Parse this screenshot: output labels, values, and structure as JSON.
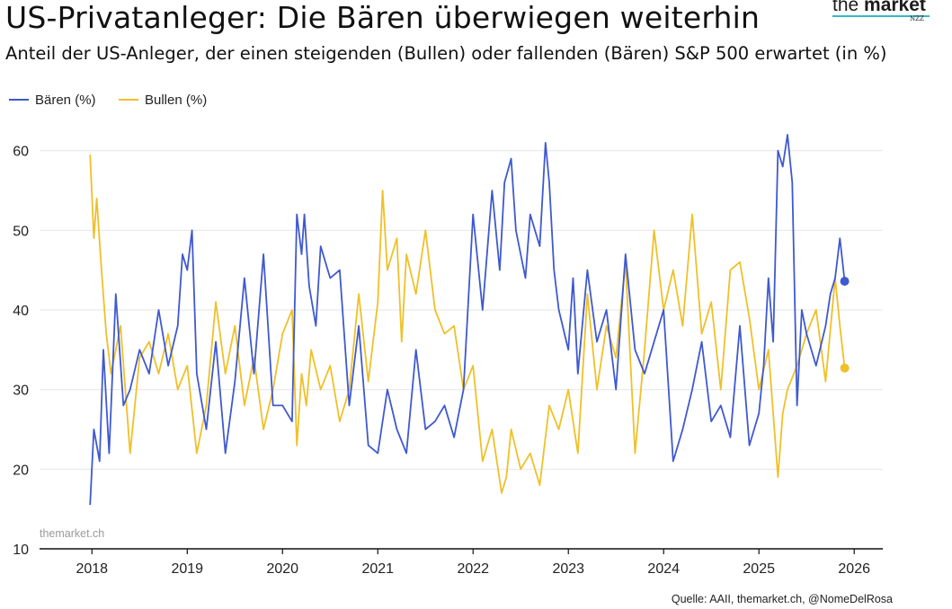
{
  "header": {
    "title": "US-Privatanleger: Die Bären überwiegen weiterhin",
    "subtitle": "Anteil der US-Anleger, der einen steigenden (Bullen) oder fallenden (Bären) S&P 500 erwartet (in %)"
  },
  "logo": {
    "main_light": "the ",
    "main_bold": "market",
    "sub": "NZZ"
  },
  "watermark": "themarket.ch",
  "source": "Quelle: AAII, themarket.ch, @NomeDelRosa",
  "colors": {
    "baeren": "#3f59cf",
    "bullen": "#efc02a",
    "grid": "#e6e6e6",
    "axis": "#111111"
  },
  "chart_data": {
    "type": "line",
    "x_unit": "year",
    "xlim": [
      2017.45,
      2026.3
    ],
    "ylim": [
      10,
      62
    ],
    "yticks": [
      10,
      20,
      30,
      40,
      50,
      60
    ],
    "xticks": [
      2018,
      2019,
      2020,
      2021,
      2022,
      2023,
      2024,
      2025,
      2026
    ],
    "ytick_labels": [
      "10",
      "20",
      "30",
      "40",
      "50",
      "60"
    ],
    "xtick_labels": [
      "2018",
      "2019",
      "2020",
      "2021",
      "2022",
      "2023",
      "2024",
      "2025",
      "2026"
    ],
    "grid": true,
    "legend_position": "top-left",
    "series": [
      {
        "name": "Bären (%)",
        "color": "#3f59cf",
        "x": [
          2017.98,
          2018.02,
          2018.08,
          2018.12,
          2018.18,
          2018.25,
          2018.33,
          2018.4,
          2018.5,
          2018.6,
          2018.7,
          2018.8,
          2018.9,
          2018.95,
          2019.0,
          2019.05,
          2019.1,
          2019.2,
          2019.3,
          2019.4,
          2019.5,
          2019.6,
          2019.7,
          2019.8,
          2019.9,
          2020.0,
          2020.1,
          2020.15,
          2020.2,
          2020.23,
          2020.28,
          2020.35,
          2020.4,
          2020.5,
          2020.6,
          2020.7,
          2020.8,
          2020.9,
          2021.0,
          2021.1,
          2021.2,
          2021.3,
          2021.4,
          2021.5,
          2021.6,
          2021.7,
          2021.8,
          2021.9,
          2022.0,
          2022.1,
          2022.2,
          2022.28,
          2022.33,
          2022.4,
          2022.45,
          2022.5,
          2022.55,
          2022.6,
          2022.7,
          2022.76,
          2022.8,
          2022.85,
          2022.9,
          2023.0,
          2023.05,
          2023.1,
          2023.2,
          2023.3,
          2023.4,
          2023.5,
          2023.6,
          2023.7,
          2023.8,
          2023.9,
          2024.0,
          2024.1,
          2024.2,
          2024.3,
          2024.4,
          2024.5,
          2024.6,
          2024.7,
          2024.8,
          2024.9,
          2025.0,
          2025.05,
          2025.1,
          2025.15,
          2025.2,
          2025.25,
          2025.3,
          2025.35,
          2025.4,
          2025.45,
          2025.5,
          2025.6,
          2025.7,
          2025.75,
          2025.8,
          2025.85,
          2025.9
        ],
        "values": [
          15.5,
          25,
          21,
          35,
          22,
          42,
          28,
          30,
          35,
          32,
          40,
          33,
          38,
          47,
          45,
          50,
          32,
          25,
          36,
          22,
          31,
          44,
          32,
          47,
          28,
          28,
          26,
          52,
          47,
          52,
          43,
          38,
          48,
          44,
          45,
          28,
          38,
          23,
          22,
          30,
          25,
          22,
          35,
          25,
          26,
          28,
          24,
          30,
          52,
          40,
          55,
          45,
          56,
          59,
          50,
          47,
          44,
          52,
          48,
          61,
          56,
          45,
          40,
          35,
          44,
          32,
          45,
          36,
          40,
          30,
          47,
          35,
          32,
          36,
          40,
          21,
          25,
          30,
          36,
          26,
          28,
          24,
          38,
          23,
          27,
          33,
          44,
          36,
          60,
          58,
          62,
          56,
          28,
          40,
          37,
          33,
          38,
          42,
          44,
          49,
          43.6
        ],
        "end_marker": true
      },
      {
        "name": "Bullen (%)",
        "color": "#efc02a",
        "x": [
          2017.98,
          2018.02,
          2018.05,
          2018.1,
          2018.15,
          2018.2,
          2018.3,
          2018.4,
          2018.5,
          2018.6,
          2018.7,
          2018.8,
          2018.9,
          2019.0,
          2019.1,
          2019.2,
          2019.3,
          2019.4,
          2019.5,
          2019.6,
          2019.7,
          2019.8,
          2019.9,
          2020.0,
          2020.1,
          2020.15,
          2020.2,
          2020.25,
          2020.3,
          2020.4,
          2020.5,
          2020.6,
          2020.7,
          2020.8,
          2020.9,
          2021.0,
          2021.05,
          2021.1,
          2021.2,
          2021.25,
          2021.3,
          2021.4,
          2021.5,
          2021.6,
          2021.7,
          2021.8,
          2021.9,
          2022.0,
          2022.1,
          2022.2,
          2022.3,
          2022.35,
          2022.4,
          2022.5,
          2022.6,
          2022.7,
          2022.8,
          2022.9,
          2023.0,
          2023.1,
          2023.2,
          2023.3,
          2023.4,
          2023.5,
          2023.6,
          2023.7,
          2023.8,
          2023.9,
          2024.0,
          2024.1,
          2024.2,
          2024.3,
          2024.4,
          2024.5,
          2024.6,
          2024.7,
          2024.8,
          2024.9,
          2025.0,
          2025.1,
          2025.2,
          2025.25,
          2025.3,
          2025.4,
          2025.5,
          2025.6,
          2025.7,
          2025.8,
          2025.85,
          2025.9
        ],
        "values": [
          59.5,
          49,
          54,
          45,
          37,
          32,
          38,
          22,
          34,
          36,
          32,
          37,
          30,
          33,
          22,
          28,
          41,
          32,
          38,
          28,
          34,
          25,
          30,
          37,
          40,
          23,
          32,
          28,
          35,
          30,
          33,
          26,
          30,
          42,
          31,
          41,
          55,
          45,
          49,
          36,
          47,
          42,
          50,
          40,
          37,
          38,
          30,
          33,
          21,
          25,
          17,
          19,
          25,
          20,
          22,
          18,
          28,
          25,
          30,
          22,
          42,
          30,
          38,
          34,
          46,
          22,
          35,
          50,
          40,
          45,
          38,
          52,
          37,
          41,
          30,
          45,
          46,
          39,
          30,
          35,
          19,
          27,
          30,
          33,
          37,
          40,
          31,
          44,
          38,
          32.7
        ],
        "end_marker": true
      }
    ]
  }
}
